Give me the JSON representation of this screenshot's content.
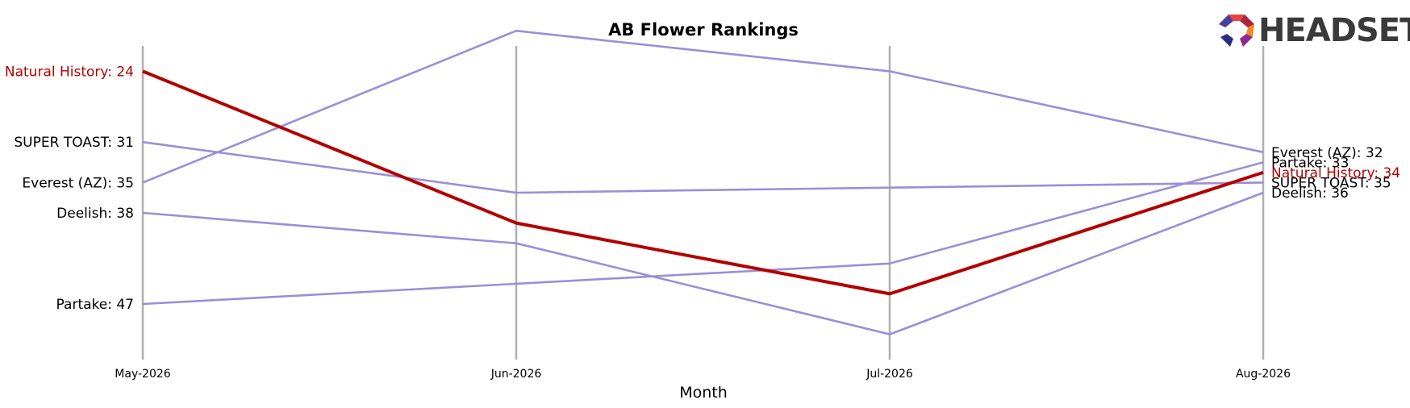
{
  "brand": {
    "name": "HEADSET",
    "logo_colors": [
      "#e8453c",
      "#b0223f",
      "#f08a24",
      "#8e2a8f",
      "#2b2e83",
      "#4a3f9e"
    ]
  },
  "chart_data": {
    "type": "line",
    "title": "AB Flower Rankings",
    "xlabel": "Month",
    "ylabel": "",
    "categories": [
      "May-2026",
      "Jun-2026",
      "Jul-2026",
      "Aug-2026"
    ],
    "y_inverted": true,
    "ylim": [
      21.5,
      52.5
    ],
    "grid": false,
    "highlight_color": "#b30000",
    "other_color": "#9a8fd8",
    "axis_line_color": "#b0b0b0",
    "series": [
      {
        "name": "Natural History",
        "values": [
          24,
          39,
          46,
          34
        ],
        "highlight": true,
        "start_label": "Natural History: 24",
        "end_label": "Natural History: 34"
      },
      {
        "name": "SUPER TOAST",
        "values": [
          31,
          36,
          35.5,
          35
        ],
        "highlight": false,
        "start_label": "SUPER TOAST: 31",
        "end_label": "SUPER TOAST: 35"
      },
      {
        "name": "Everest (AZ)",
        "values": [
          35,
          20,
          24,
          32
        ],
        "highlight": false,
        "start_label": "Everest (AZ): 35",
        "end_label": "Everest (AZ): 32"
      },
      {
        "name": "Deelish",
        "values": [
          38,
          41,
          50,
          36
        ],
        "highlight": false,
        "start_label": "Deelish: 38",
        "end_label": "Deelish: 36"
      },
      {
        "name": "Partake",
        "values": [
          47,
          45,
          43,
          33
        ],
        "highlight": false,
        "start_label": "Partake: 47",
        "end_label": "Partake: 33"
      }
    ]
  }
}
